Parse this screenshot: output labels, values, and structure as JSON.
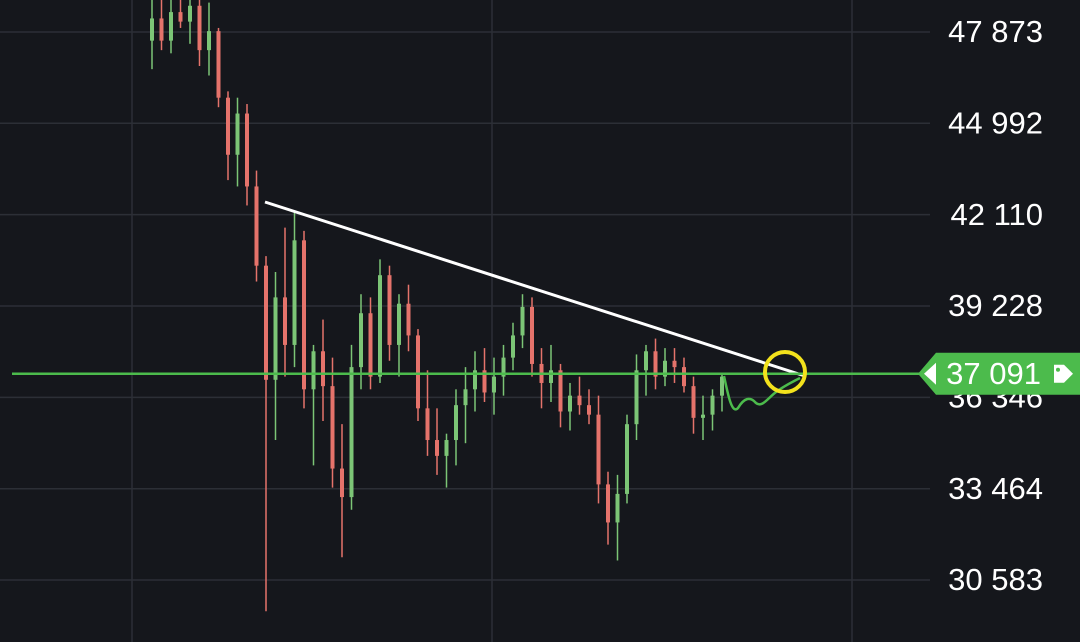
{
  "chart_data": {
    "type": "candlestick",
    "open": [
      47600,
      48300,
      47600,
      48500,
      48200,
      48700,
      47300,
      47900,
      45800,
      44000,
      45300,
      43000,
      40500,
      36900,
      39500,
      38000,
      41300,
      36600,
      37800,
      36700,
      34100,
      33200,
      37300,
      39000,
      37000,
      40200,
      38000,
      39300,
      38300,
      36000,
      35000,
      34500,
      35000,
      36100,
      36600,
      37200,
      36500,
      37000,
      37600,
      38300,
      39200,
      37400,
      36800,
      37200,
      35900,
      36400,
      36100,
      35800,
      33600,
      32400,
      33300,
      35500,
      37200,
      37800,
      37000,
      37500,
      37300,
      36700,
      35700,
      35800,
      36400
    ],
    "high": [
      48900,
      48900,
      48900,
      48900,
      48900,
      48900,
      48800,
      48000,
      46000,
      45800,
      45600,
      43500,
      40800,
      40300,
      41700,
      42200,
      41600,
      38000,
      38800,
      37600,
      35500,
      38000,
      39600,
      39500,
      40700,
      40500,
      39600,
      39900,
      38500,
      37200,
      36000,
      35200,
      36600,
      37300,
      37800,
      37900,
      37600,
      38000,
      38700,
      39600,
      39500,
      37900,
      38000,
      37400,
      36800,
      37000,
      36600,
      36400,
      34000,
      33900,
      35800,
      37700,
      38000,
      38200,
      37900,
      37900,
      37600,
      37000,
      36400,
      36600,
      37100
    ],
    "low": [
      46700,
      47300,
      47200,
      48000,
      47500,
      46800,
      46500,
      45500,
      43200,
      43000,
      42400,
      40000,
      29600,
      35000,
      37000,
      37300,
      36000,
      34200,
      35600,
      33500,
      31300,
      32800,
      36600,
      36600,
      36800,
      37500,
      37000,
      37800,
      35600,
      34500,
      33900,
      33500,
      34200,
      34900,
      35900,
      36200,
      35800,
      36400,
      37200,
      37900,
      37000,
      36000,
      36200,
      35400,
      35300,
      35800,
      35500,
      33000,
      31700,
      31200,
      33000,
      35000,
      36400,
      36600,
      36700,
      36800,
      36500,
      35200,
      35000,
      35300,
      35900
    ],
    "close": [
      48300,
      47600,
      48500,
      48200,
      48700,
      47300,
      47900,
      45800,
      44000,
      45300,
      43000,
      40500,
      36900,
      39500,
      38000,
      41300,
      36600,
      37800,
      36700,
      34100,
      33200,
      37300,
      39000,
      37000,
      40200,
      38000,
      39300,
      38300,
      36000,
      35000,
      34500,
      35000,
      36100,
      36600,
      37200,
      36500,
      37000,
      37600,
      38300,
      39200,
      37400,
      36800,
      37200,
      35900,
      36400,
      36100,
      35800,
      33600,
      32400,
      33300,
      35500,
      37200,
      37800,
      37000,
      37500,
      37300,
      36700,
      35700,
      35800,
      36400,
      37000
    ],
    "up_color": "#7cc576",
    "down_color": "#e5736b",
    "ylim": [
      28628,
      48882
    ],
    "yticks": [
      {
        "value": 47873,
        "label": "47 873"
      },
      {
        "value": 44992,
        "label": "44 992"
      },
      {
        "value": 42110,
        "label": "42 110"
      },
      {
        "value": 39228,
        "label": "39 228"
      },
      {
        "value": 36346,
        "label": "36 346"
      },
      {
        "value": 33464,
        "label": "33 464"
      },
      {
        "value": 30583,
        "label": "30 583"
      }
    ],
    "current_price": {
      "value": 37091,
      "label": "37 091"
    },
    "price_line_color": "#4cbb4c",
    "grid": true
  }
}
